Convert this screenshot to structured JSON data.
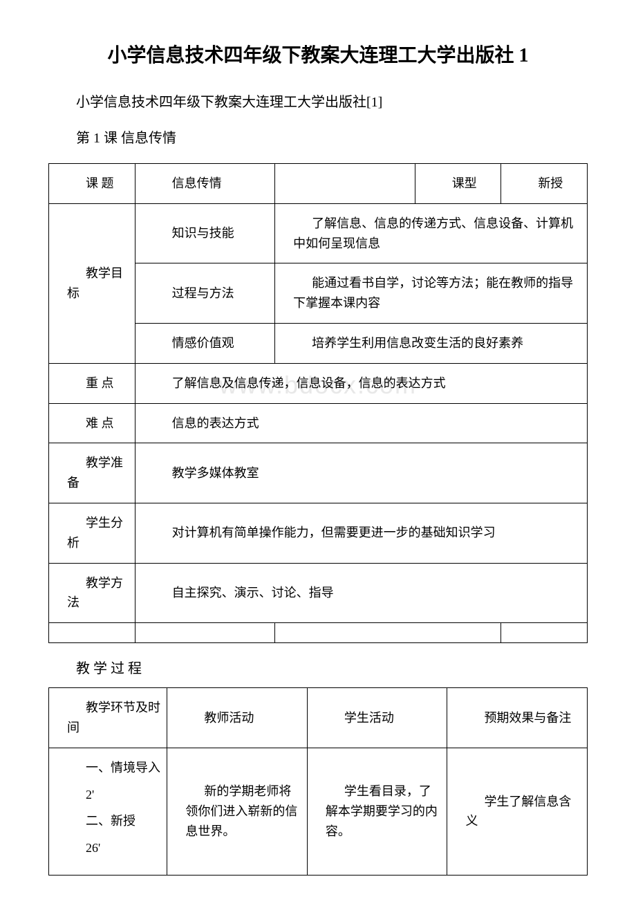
{
  "colors": {
    "background": "#ffffff",
    "text": "#000000",
    "border": "#000000",
    "watermark": "#e8e8e8"
  },
  "typography": {
    "title_fontsize": 28,
    "body_fontsize": 20,
    "table_fontsize": 18,
    "watermark_fontsize": 36,
    "font_family": "SimSun"
  },
  "title": "小学信息技术四年级下教案大连理工大学出版社 1",
  "subtitle": "小学信息技术四年级下教案大连理工大学出版社[1]",
  "lesson_heading": "第 1 课 信息传情",
  "watermark_text": "www.bdocx.com",
  "table1": {
    "rows": [
      {
        "cells": [
          {
            "text": "课 题",
            "colspan": 1
          },
          {
            "text": "信息传情",
            "colspan": 2
          },
          {
            "text": "",
            "colspan": 1
          },
          {
            "text": "课型",
            "colspan": 1
          },
          {
            "text": "新授",
            "colspan": 1
          }
        ]
      },
      {
        "cells": [
          {
            "text": "教学目标",
            "rowspan": 3
          },
          {
            "text": "知识与技能",
            "colspan": 2
          },
          {
            "text": "了解信息、信息的传递方式、信息设备、计算机中如何呈现信息",
            "colspan": 3
          }
        ]
      },
      {
        "cells": [
          {
            "text": "过程与方法",
            "colspan": 2
          },
          {
            "text": "能通过看书自学，讨论等方法；能在教师的指导下掌握本课内容",
            "colspan": 3
          }
        ]
      },
      {
        "cells": [
          {
            "text": "情感价值观",
            "colspan": 2
          },
          {
            "text": "培养学生利用信息改变生活的良好素养",
            "colspan": 3
          }
        ]
      },
      {
        "cells": [
          {
            "text": "重 点",
            "colspan": 1
          },
          {
            "text": "了解信息及信息传递，信息设备，信息的表达方式",
            "colspan": 5
          }
        ]
      },
      {
        "cells": [
          {
            "text": "难 点",
            "colspan": 1
          },
          {
            "text": "信息的表达方式",
            "colspan": 5
          }
        ]
      },
      {
        "cells": [
          {
            "text": "教学准备",
            "colspan": 1
          },
          {
            "text": "教学多媒体教室",
            "colspan": 5
          }
        ]
      },
      {
        "cells": [
          {
            "text": "学生分析",
            "colspan": 1
          },
          {
            "text": "对计算机有简单操作能力，但需要更进一步的基础知识学习",
            "colspan": 5
          }
        ]
      },
      {
        "cells": [
          {
            "text": "教学方法",
            "colspan": 1
          },
          {
            "text": "自主探究、演示、讨论、指导",
            "colspan": 5
          }
        ]
      },
      {
        "cells": [
          {
            "text": "",
            "colspan": 1
          },
          {
            "text": "",
            "colspan": 2
          },
          {
            "text": "",
            "colspan": 2
          },
          {
            "text": "",
            "colspan": 1
          }
        ]
      }
    ]
  },
  "section_heading": "教 学 过 程",
  "table2": {
    "header": [
      "教学环节及时间",
      "教师活动",
      "学生活动",
      "预期效果与备注"
    ],
    "row": {
      "col1_lines": [
        "一、情境导入",
        "2'",
        "二、新授",
        "26'"
      ],
      "col2": "新的学期老师将领你们进入崭新的信息世界。",
      "col3": "学生看目录，了解本学期要学习的内容。",
      "col4": "学生了解信息含义"
    }
  }
}
